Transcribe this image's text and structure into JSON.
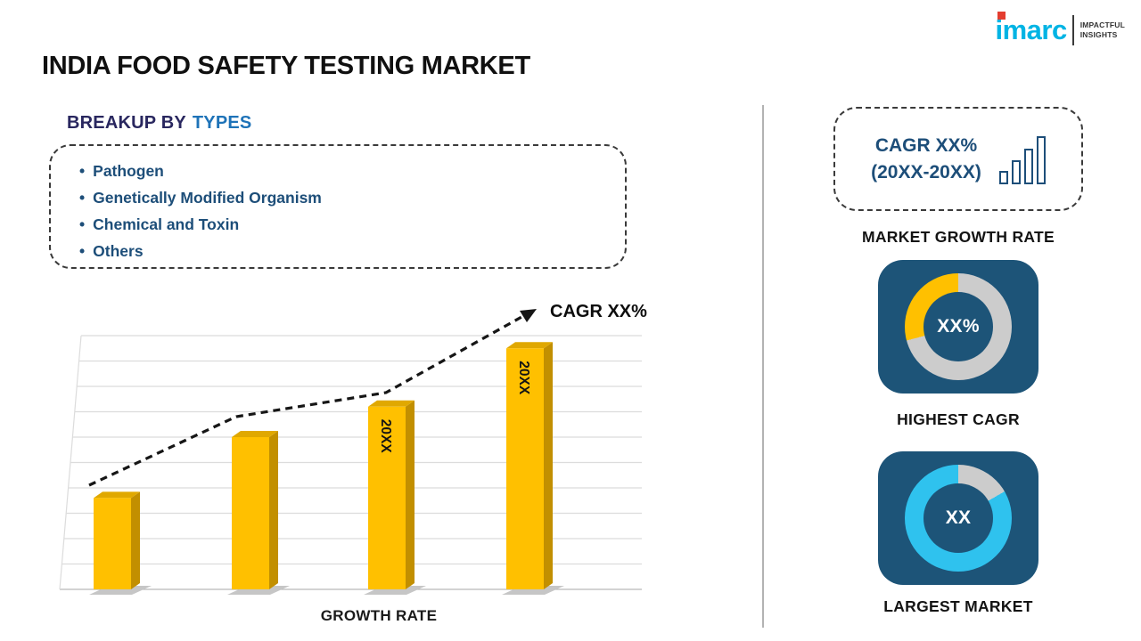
{
  "header": {
    "title": "INDIA FOOD SAFETY TESTING MARKET",
    "logo": {
      "brand": "imarc",
      "tagline_line1": "IMPACTFUL",
      "tagline_line2": "INSIGHTS"
    }
  },
  "breakup": {
    "heading_prefix": "BREAKUP BY",
    "heading_highlight": "TYPES",
    "items": [
      "Pathogen",
      "Genetically Modified Organism",
      "Chemical and Toxin",
      "Others"
    ]
  },
  "chart_data": {
    "type": "bar",
    "title": "",
    "xlabel": "GROWTH RATE",
    "ylabel": "",
    "categories": [
      "",
      "",
      "20XX",
      "20XX"
    ],
    "values": [
      36,
      60,
      72,
      95
    ],
    "ylim": [
      0,
      100
    ],
    "grid": true,
    "legend_position": "none",
    "bar_color": "#FFC000",
    "bar_side_color": "#c28f00",
    "bar_top_color": "#e0a800",
    "trend_label": "CAGR XX%"
  },
  "sidebar": {
    "cagr_box": {
      "line1": "CAGR XX%",
      "line2": "(20XX-20XX)"
    },
    "market_growth_label": "MARKET GROWTH RATE",
    "highest_cagr": {
      "value": "XX%",
      "label": "HIGHEST CAGR",
      "segment_color": "#FFC000",
      "track_color": "#cccccc",
      "segment_start_deg": 255,
      "segment_end_deg": 360
    },
    "largest_market": {
      "value": "XX",
      "label": "LARGEST MARKET",
      "segment_color": "#2fc2ee",
      "track_color": "#cccccc",
      "segment_start_deg": 60,
      "segment_end_deg": 360
    }
  },
  "colors": {
    "navy_text": "#1d4e79",
    "card_navy": "#1d5478",
    "heading_dark": "#29275f",
    "accent_blue": "#1e73b8",
    "bar_yellow": "#FFC000",
    "logo_cyan": "#00b4e4",
    "logo_red": "#e43d30"
  }
}
